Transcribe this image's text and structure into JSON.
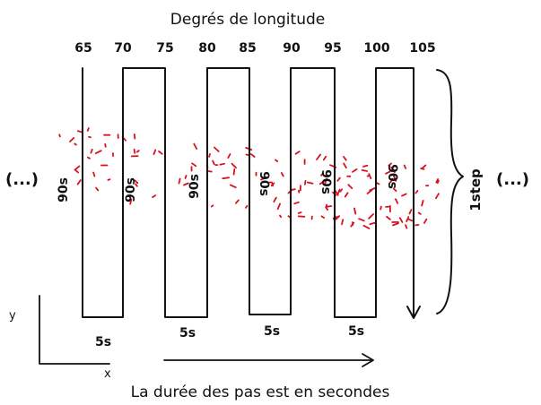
{
  "title": "Degrés de longitude",
  "caption": "La durée des pas est en secondes",
  "longitudes": [
    "65",
    "70",
    "75",
    "80",
    "85",
    "90",
    "95",
    "100",
    "105"
  ],
  "scan_durations": [
    "90s",
    "90s",
    "90s",
    "90s",
    "90s",
    "90s"
  ],
  "step_durations": [
    "5s",
    "5s",
    "5s",
    "5s"
  ],
  "ellipsis_left": "(...)",
  "ellipsis_right": "(...)",
  "brace_label": "1step",
  "axis_y_label": "y",
  "axis_x_label": "x",
  "dot_color": "#d9111e"
}
